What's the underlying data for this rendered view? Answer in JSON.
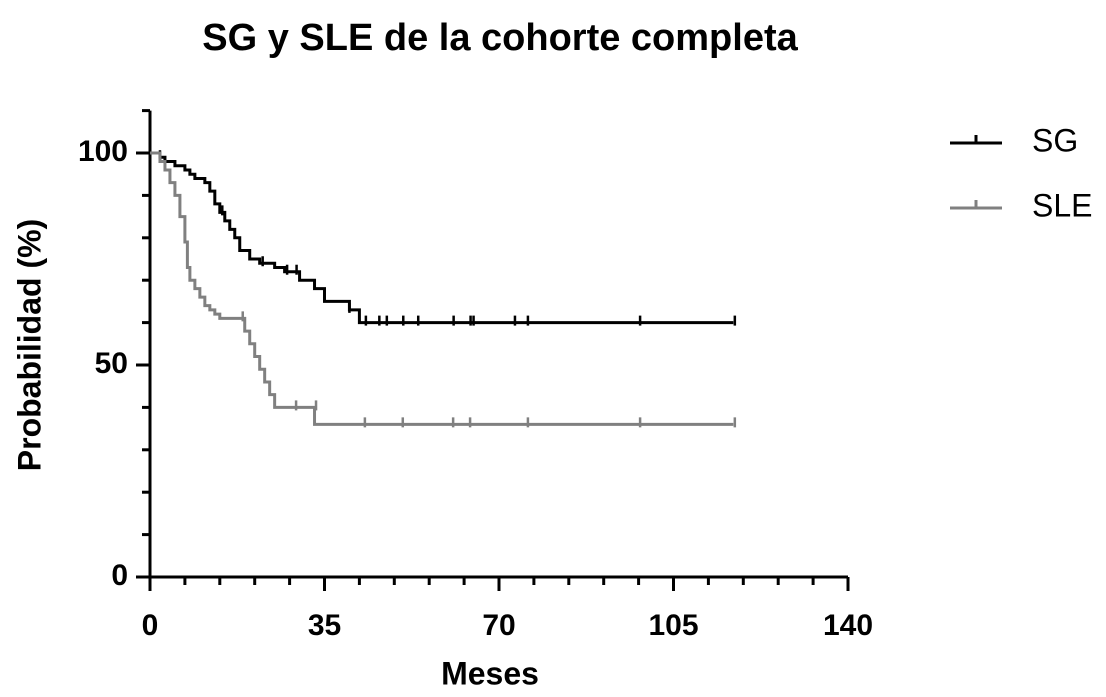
{
  "chart_data": {
    "type": "survival",
    "title": "SG y SLE de la cohorte completa",
    "xlabel": "Meses",
    "ylabel": "Probabilidad (%)",
    "xlim": [
      0,
      140
    ],
    "ylim": [
      0,
      110
    ],
    "xticks": [
      0,
      35,
      70,
      105,
      140
    ],
    "xminor_ticks": [
      7,
      14,
      21,
      28,
      42,
      49,
      56,
      63,
      77,
      84,
      91,
      98,
      112,
      119,
      126,
      133
    ],
    "yticks": [
      0,
      50,
      100
    ],
    "yminor_ticks": [
      10,
      20,
      30,
      40,
      60,
      70,
      80,
      90,
      110
    ],
    "series": [
      {
        "name": "SG",
        "color": "#000000",
        "x": [
          0,
          2,
          3,
          5,
          7,
          8,
          9,
          11,
          12,
          13,
          14,
          15,
          16,
          17,
          18,
          20,
          22,
          25,
          27,
          30,
          33,
          35,
          40,
          42,
          117
        ],
        "values": [
          100,
          99,
          98,
          97,
          96,
          95,
          94,
          93,
          91,
          88,
          86,
          84,
          82,
          80,
          77,
          75,
          74,
          73,
          72,
          70,
          68,
          65,
          63,
          60,
          60
        ],
        "censor_x": [
          2,
          14.5,
          22.6,
          27.5,
          29.4,
          40,
          43.3,
          46,
          47.5,
          50.8,
          53.8,
          60.9,
          64.3,
          64.9,
          73.2,
          75.8,
          98.3,
          117.3
        ],
        "censor_y": [
          99,
          86,
          74,
          72,
          72,
          63,
          60,
          60,
          60,
          60,
          60,
          60,
          60,
          60,
          60,
          60,
          60,
          60
        ]
      },
      {
        "name": "SLE",
        "color": "#808080",
        "x": [
          0,
          2,
          3,
          4,
          5,
          6,
          7,
          7.5,
          8,
          9,
          10,
          11,
          12,
          13,
          14,
          19,
          20,
          21,
          22,
          23,
          24,
          25,
          33,
          117
        ],
        "values": [
          100,
          98,
          96,
          93,
          90,
          85,
          79,
          73,
          70,
          68,
          66,
          64,
          63,
          62,
          61,
          58,
          55,
          52,
          49,
          46,
          43,
          40,
          36,
          36
        ],
        "censor_x": [
          18.6,
          29.3,
          33.3,
          43.1,
          50.7,
          60.8,
          64.2,
          75.8,
          98.3,
          117.3
        ],
        "censor_y": [
          61,
          40,
          40,
          36,
          36,
          36,
          36,
          36,
          36,
          36
        ]
      }
    ],
    "legend": "right"
  }
}
